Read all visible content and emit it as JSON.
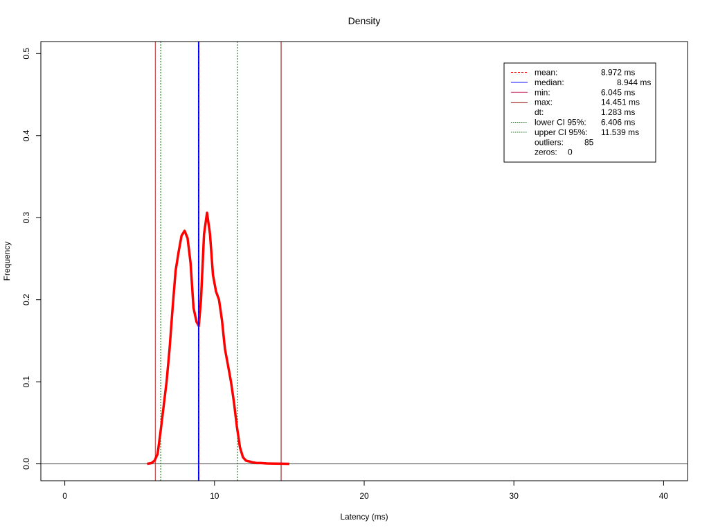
{
  "chart_data": {
    "type": "line",
    "title": "Density",
    "xlabel": "Latency (ms)",
    "ylabel": "Frequency",
    "xlim": [
      -1.6,
      41.6
    ],
    "ylim": [
      -0.0206,
      0.5146
    ],
    "xticks": [
      0,
      10,
      20,
      30,
      40
    ],
    "yticks": [
      0.0,
      0.1,
      0.2,
      0.3,
      0.4,
      0.5
    ],
    "xtick_labels": [
      "0",
      "10",
      "20",
      "30",
      "40"
    ],
    "ytick_labels": [
      "0.0",
      "0.1",
      "0.2",
      "0.3",
      "0.4",
      "0.5"
    ],
    "grid": false,
    "legend_position": "top-right",
    "series": [
      {
        "color": "#ff0000",
        "x": [
          5.5,
          5.8,
          6.0,
          6.2,
          6.4,
          6.6,
          6.8,
          7.0,
          7.2,
          7.4,
          7.6,
          7.8,
          8.0,
          8.2,
          8.4,
          8.6,
          8.8,
          8.95,
          9.1,
          9.3,
          9.5,
          9.7,
          9.9,
          10.1,
          10.3,
          10.5,
          10.7,
          10.9,
          11.1,
          11.3,
          11.5,
          11.7,
          11.9,
          12.1,
          12.3,
          12.5,
          12.8,
          13.1,
          13.5,
          14.0,
          14.5,
          15.0
        ],
        "y": [
          0.0,
          0.001,
          0.004,
          0.012,
          0.04,
          0.07,
          0.1,
          0.14,
          0.19,
          0.235,
          0.258,
          0.278,
          0.284,
          0.275,
          0.245,
          0.19,
          0.173,
          0.168,
          0.2,
          0.28,
          0.306,
          0.28,
          0.23,
          0.21,
          0.2,
          0.175,
          0.14,
          0.12,
          0.1,
          0.075,
          0.045,
          0.02,
          0.008,
          0.004,
          0.003,
          0.002,
          0.001,
          0.001,
          0.0005,
          0.0003,
          0.0002,
          0.0
        ]
      }
    ],
    "vlines": [
      {
        "name": "mean",
        "x": 8.972,
        "color": "#ff0000",
        "style": "dashed"
      },
      {
        "name": "median",
        "x": 8.944,
        "color": "#0000ff",
        "style": "solid"
      },
      {
        "name": "min",
        "x": 6.045,
        "color": "#b22222",
        "style": "solid"
      },
      {
        "name": "max",
        "x": 14.451,
        "color": "#8b0000",
        "style": "solid"
      },
      {
        "name": "lower CI 95%",
        "x": 6.406,
        "color": "#006400",
        "style": "dotted"
      },
      {
        "name": "upper CI 95%",
        "x": 11.539,
        "color": "#006400",
        "style": "dotted"
      }
    ],
    "hline_y": 0,
    "legend": [
      {
        "label": "mean:",
        "value": "8.972 ms",
        "line": "dashed",
        "color": "#ff0000"
      },
      {
        "label": "median:",
        "value": "8.944 ms",
        "line": "solid",
        "color": "#0000ff"
      },
      {
        "label": "min:",
        "value": "6.045 ms",
        "line": "solid",
        "color": "#cc3366"
      },
      {
        "label": "max:",
        "value": "14.451 ms",
        "line": "solid",
        "color": "#8b0000"
      },
      {
        "label": "dt:",
        "value": "1.283 ms",
        "line": "none",
        "color": ""
      },
      {
        "label": "lower CI 95%:",
        "value": "6.406 ms",
        "line": "dotted",
        "color": "#006400"
      },
      {
        "label": "upper CI 95%:",
        "value": "11.539 ms",
        "line": "dotted",
        "color": "#006400"
      },
      {
        "label": "outliers:",
        "value": "85",
        "line": "none",
        "color": ""
      },
      {
        "label": "zeros:",
        "value": "0",
        "line": "none",
        "color": ""
      }
    ]
  }
}
